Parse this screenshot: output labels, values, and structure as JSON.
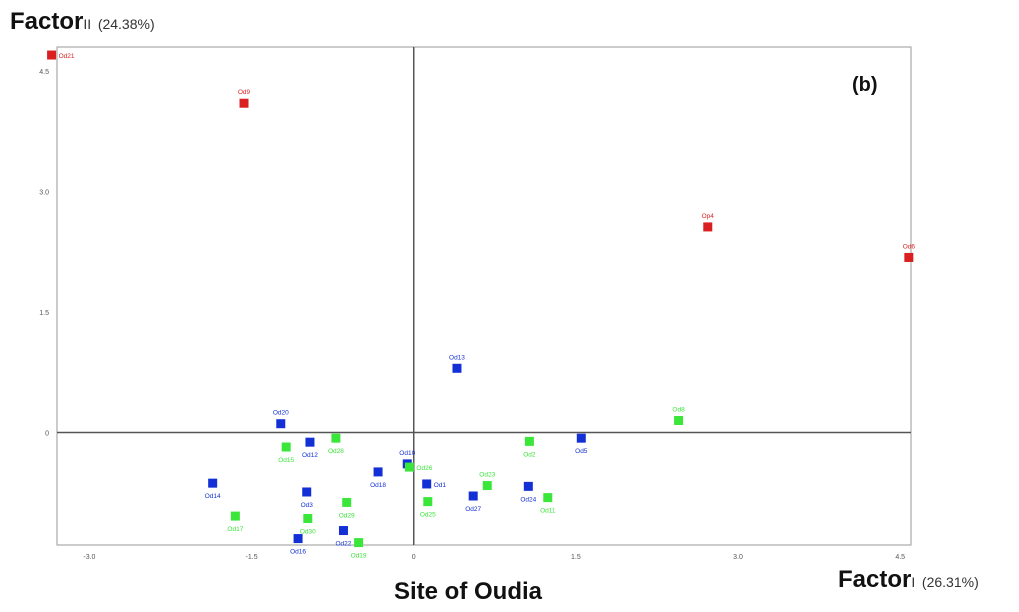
{
  "chart_data": {
    "type": "scatter",
    "panel_label": "(b)",
    "site_label": "Site of Oudia",
    "xaxis": {
      "label_main": "Factor",
      "label_numeral": "I",
      "label_pct": "(26.31%)",
      "range": [
        -3.3,
        4.6
      ],
      "ticks": [
        -3.0,
        -1.5,
        0,
        1.5,
        3.0,
        4.5
      ],
      "tick_labels": [
        "-3.0",
        "-1.5",
        "0",
        "1.5",
        "3.0",
        "4.5"
      ]
    },
    "yaxis": {
      "label_main": "Factor",
      "label_numeral": "II",
      "label_pct": "(24.38%)",
      "range": [
        -1.4,
        4.8
      ],
      "ticks": [
        0,
        1.5,
        3.0,
        4.5
      ],
      "tick_labels": [
        "0",
        "1.5",
        "3.0",
        "4.5"
      ]
    },
    "grid": false,
    "colors": {
      "red": "#d91f1f",
      "blue": "#1230d6",
      "green": "#3be63b"
    },
    "points": [
      {
        "label": "Od21",
        "x": -3.35,
        "y": 4.7,
        "color": "red",
        "lp": "right"
      },
      {
        "label": "Od9",
        "x": -1.57,
        "y": 4.1,
        "color": "red",
        "lp": "above"
      },
      {
        "label": "Op4",
        "x": 2.72,
        "y": 2.56,
        "color": "red",
        "lp": "above"
      },
      {
        "label": "Od6",
        "x": 4.58,
        "y": 2.18,
        "color": "red",
        "lp": "above"
      },
      {
        "label": "Od13",
        "x": 0.4,
        "y": 0.8,
        "color": "blue",
        "lp": "above"
      },
      {
        "label": "Od20",
        "x": -1.23,
        "y": 0.11,
        "color": "blue",
        "lp": "above"
      },
      {
        "label": "Od5",
        "x": 1.55,
        "y": -0.07,
        "color": "blue",
        "lp": "below"
      },
      {
        "label": "Od12",
        "x": -0.96,
        "y": -0.12,
        "color": "blue",
        "lp": "below"
      },
      {
        "label": "Od10",
        "x": -0.06,
        "y": -0.39,
        "color": "blue",
        "lp": "above"
      },
      {
        "label": "Od18",
        "x": -0.33,
        "y": -0.49,
        "color": "blue",
        "lp": "below"
      },
      {
        "label": "Od1",
        "x": 0.12,
        "y": -0.64,
        "color": "blue",
        "lp": "right"
      },
      {
        "label": "Od24",
        "x": 1.06,
        "y": -0.67,
        "color": "blue",
        "lp": "below"
      },
      {
        "label": "Od14",
        "x": -1.86,
        "y": -0.63,
        "color": "blue",
        "lp": "below"
      },
      {
        "label": "Od3",
        "x": -0.99,
        "y": -0.74,
        "color": "blue",
        "lp": "below"
      },
      {
        "label": "Od27",
        "x": 0.55,
        "y": -0.79,
        "color": "blue",
        "lp": "below"
      },
      {
        "label": "Od22",
        "x": -0.65,
        "y": -1.22,
        "color": "blue",
        "lp": "below"
      },
      {
        "label": "Od16",
        "x": -1.07,
        "y": -1.32,
        "color": "blue",
        "lp": "below"
      },
      {
        "label": "Od8",
        "x": 2.45,
        "y": 0.15,
        "color": "green",
        "lp": "above"
      },
      {
        "label": "Od28",
        "x": -0.72,
        "y": -0.07,
        "color": "green",
        "lp": "below"
      },
      {
        "label": "Od15",
        "x": -1.18,
        "y": -0.18,
        "color": "green",
        "lp": "below"
      },
      {
        "label": "Od2",
        "x": 1.07,
        "y": -0.11,
        "color": "green",
        "lp": "below"
      },
      {
        "label": "Od26",
        "x": -0.04,
        "y": -0.43,
        "color": "green",
        "lp": "right"
      },
      {
        "label": "Od23",
        "x": 0.68,
        "y": -0.66,
        "color": "green",
        "lp": "above"
      },
      {
        "label": "Od29",
        "x": -0.62,
        "y": -0.87,
        "color": "green",
        "lp": "below"
      },
      {
        "label": "Od25",
        "x": 0.13,
        "y": -0.86,
        "color": "green",
        "lp": "below"
      },
      {
        "label": "Od11",
        "x": 1.24,
        "y": -0.81,
        "color": "green",
        "lp": "below"
      },
      {
        "label": "Od17",
        "x": -1.65,
        "y": -1.04,
        "color": "green",
        "lp": "below"
      },
      {
        "label": "Od30",
        "x": -0.98,
        "y": -1.07,
        "color": "green",
        "lp": "below"
      },
      {
        "label": "Od19",
        "x": -0.51,
        "y": -1.37,
        "color": "green",
        "lp": "below"
      }
    ]
  }
}
